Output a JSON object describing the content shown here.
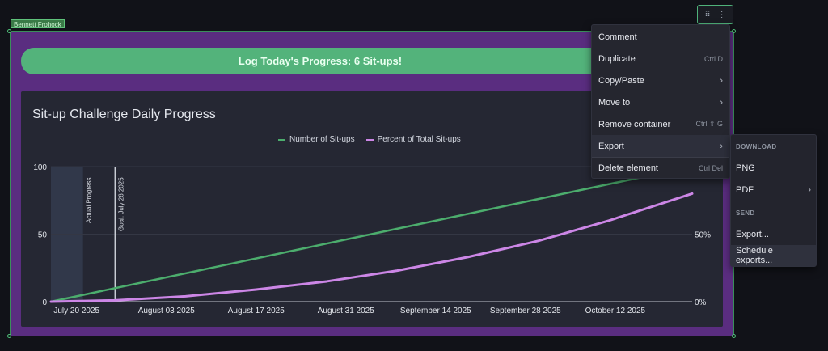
{
  "owner_tag": "Bennett Frohock",
  "log_button_label": "Log Today's Progress: 6 Sit-ups!",
  "toolbar": {
    "drag_icon": "drag-handle-icon",
    "more_icon": "more-vertical-icon"
  },
  "chart_data": {
    "type": "line",
    "title": "Sit-up Challenge Daily Progress",
    "x_ticks": [
      "July 20 2025",
      "August 03 2025",
      "August 17 2025",
      "August 31 2025",
      "September 14 2025",
      "September 28 2025",
      "October 12 2025"
    ],
    "y_left_ticks": [
      "0",
      "50",
      "100"
    ],
    "y_right_ticks": [
      "0%",
      "50%"
    ],
    "ylim": [
      0,
      100
    ],
    "series": [
      {
        "name": "Number of Sit-ups",
        "color": "#4cad6d",
        "x": [
          "2025-07-16",
          "2025-10-24"
        ],
        "y": [
          0,
          100
        ]
      },
      {
        "name": "Percent of Total Sit-ups",
        "color": "#cc86e6",
        "x": [
          "2025-07-16",
          "2025-07-26",
          "2025-08-06",
          "2025-08-17",
          "2025-08-28",
          "2025-09-08",
          "2025-09-19",
          "2025-09-30",
          "2025-10-11",
          "2025-10-24"
        ],
        "y": [
          0,
          1,
          4,
          9,
          15,
          23,
          33,
          45,
          60,
          80
        ]
      }
    ],
    "annotations": [
      {
        "label": "Actual Progress",
        "type": "band",
        "x": [
          "2025-07-16",
          "2025-07-21"
        ]
      },
      {
        "label": "Goal: July 26 2025",
        "type": "line",
        "x": "2025-07-26"
      }
    ],
    "grid": true,
    "legend": "top-center"
  },
  "context_menu": {
    "items": [
      {
        "label": "Comment",
        "shortcut": "",
        "arrow": false
      },
      {
        "label": "Duplicate",
        "shortcut": "Ctrl D",
        "arrow": false
      },
      {
        "label": "Copy/Paste",
        "shortcut": "",
        "arrow": true
      },
      {
        "label": "Move to",
        "shortcut": "",
        "arrow": true
      },
      {
        "label": "Remove container",
        "shortcut": "Ctrl ⇧ G",
        "arrow": false
      },
      {
        "label": "Export",
        "shortcut": "",
        "arrow": true
      },
      {
        "label": "Delete element",
        "shortcut": "Ctrl Del",
        "arrow": false
      }
    ]
  },
  "export_submenu": {
    "download_header": "DOWNLOAD",
    "png": "PNG",
    "pdf": "PDF",
    "send_header": "SEND",
    "export": "Export...",
    "schedule": "Schedule exports..."
  }
}
